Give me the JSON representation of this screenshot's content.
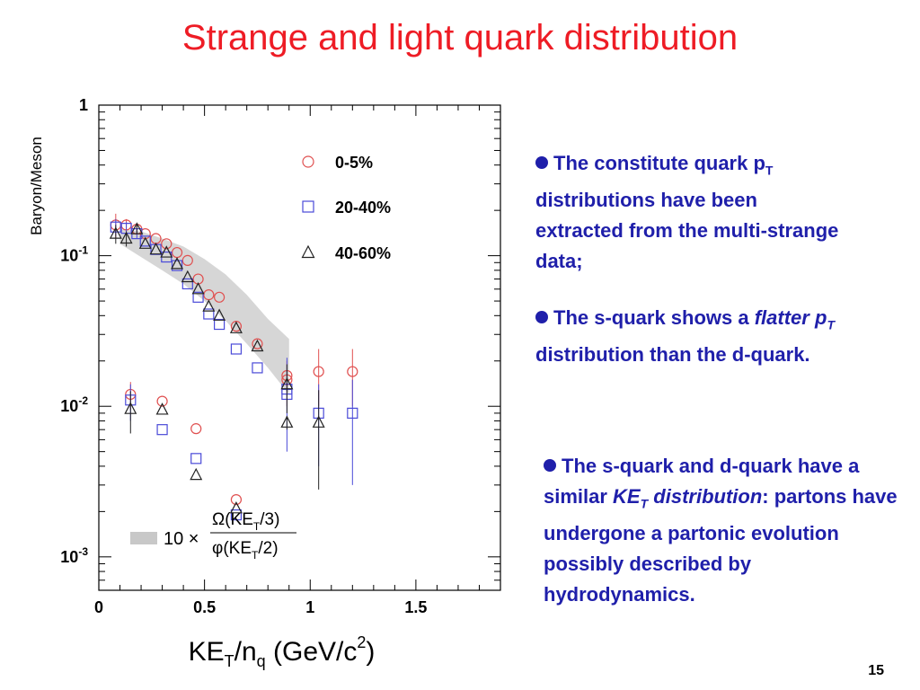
{
  "slide": {
    "title": "Strange and light quark distribution",
    "page_number": "15"
  },
  "bullets": {
    "b1": {
      "t1": "The constitute quark p",
      "sub": "T",
      "t2": " distributions have been extracted from the multi-strange data;"
    },
    "b2": {
      "t1": "The s-quark shows a ",
      "em1": "flatter",
      "em2": "p",
      "sub": "T",
      "t2": " distribution than the d-quark."
    },
    "b3": {
      "t1": "The s-quark and d-quark have a similar ",
      "em1": "KE",
      "sub": "T",
      "em2": " distribution",
      "t2": ": partons have undergone a partonic evolution possibly described by hydrodynamics."
    }
  },
  "chart_data": {
    "type": "scatter",
    "ylabel": "Baryon/Meson",
    "xlabel": "KE_T/n_q (GeV/c^2)",
    "xlim": [
      0,
      1.9
    ],
    "ylim": [
      0.0006,
      1.0
    ],
    "y_scale": "log",
    "x_ticks": [
      "0",
      "0.5",
      "1",
      "1.5"
    ],
    "y_ticks": [
      "10^-3",
      "10^-2",
      "10^-1",
      "1"
    ],
    "legend": [
      "0-5%",
      "20-40%",
      "40-60%"
    ],
    "legend_position": "top-right",
    "band_legend": "10 × Ω(KE_T/3) / φ(KE_T/2)",
    "band": {
      "x": [
        0.1,
        0.2,
        0.3,
        0.4,
        0.5,
        0.6,
        0.7,
        0.8,
        0.9
      ],
      "upper": [
        0.15,
        0.145,
        0.13,
        0.115,
        0.095,
        0.075,
        0.055,
        0.038,
        0.028
      ],
      "lower": [
        0.12,
        0.098,
        0.08,
        0.065,
        0.05,
        0.037,
        0.026,
        0.018,
        0.012
      ]
    },
    "series": [
      {
        "name": "0-5%",
        "marker": "circle",
        "color": "#e05050",
        "x": [
          0.08,
          0.13,
          0.18,
          0.22,
          0.27,
          0.32,
          0.37,
          0.42,
          0.47,
          0.52,
          0.57,
          0.65,
          0.75,
          0.89,
          0.15,
          0.3,
          0.46,
          0.65,
          0.89,
          1.04,
          1.2
        ],
        "y": [
          0.16,
          0.16,
          0.15,
          0.14,
          0.13,
          0.12,
          0.105,
          0.093,
          0.07,
          0.055,
          0.053,
          0.034,
          0.026,
          0.015,
          0.012,
          0.0108,
          0.0071,
          0.0024,
          0.016,
          0.017,
          0.017
        ],
        "err": [
          0.03,
          0.015,
          0.012,
          0.0,
          0.0,
          0.0,
          0.0,
          0.0,
          0.0,
          0.0,
          0.0,
          0.0,
          0.0,
          0.005,
          0.0025,
          0.0,
          0.0,
          0.0,
          0.0005,
          0.007,
          0.007
        ]
      },
      {
        "name": "20-40%",
        "marker": "square",
        "color": "#4a4ad8",
        "x": [
          0.08,
          0.13,
          0.18,
          0.22,
          0.27,
          0.32,
          0.37,
          0.42,
          0.47,
          0.52,
          0.57,
          0.65,
          0.75,
          0.89,
          0.15,
          0.3,
          0.46,
          0.65,
          0.89,
          1.04,
          1.2
        ],
        "y": [
          0.155,
          0.152,
          0.14,
          0.125,
          0.11,
          0.098,
          0.086,
          0.065,
          0.053,
          0.041,
          0.035,
          0.024,
          0.018,
          0.013,
          0.011,
          0.007,
          0.0045,
          0.0019,
          0.012,
          0.009,
          0.009
        ],
        "err": [
          0.02,
          0.015,
          0.01,
          0.0,
          0.0,
          0.0,
          0.0,
          0.0,
          0.0,
          0.0,
          0.0,
          0.0,
          0.0,
          0.008,
          0.003,
          0.0,
          0.0,
          0.0,
          0.0008,
          0.005,
          0.006
        ]
      },
      {
        "name": "40-60%",
        "marker": "triangle",
        "color": "#222222",
        "x": [
          0.08,
          0.13,
          0.18,
          0.22,
          0.27,
          0.32,
          0.37,
          0.42,
          0.47,
          0.52,
          0.57,
          0.65,
          0.75,
          0.89,
          0.15,
          0.3,
          0.46,
          0.65,
          0.89,
          1.04
        ],
        "y": [
          0.14,
          0.13,
          0.15,
          0.12,
          0.11,
          0.105,
          0.088,
          0.072,
          0.06,
          0.046,
          0.04,
          0.033,
          0.025,
          0.014,
          0.0096,
          0.0095,
          0.0035,
          0.0021,
          0.0078,
          0.0078
        ],
        "err": [
          0.02,
          0.015,
          0.01,
          0.0,
          0.0,
          0.0,
          0.0,
          0.0,
          0.0,
          0.0,
          0.0,
          0.0,
          0.0,
          0.005,
          0.003,
          0.0,
          0.0,
          0.0,
          0.0008,
          0.005
        ]
      }
    ]
  }
}
